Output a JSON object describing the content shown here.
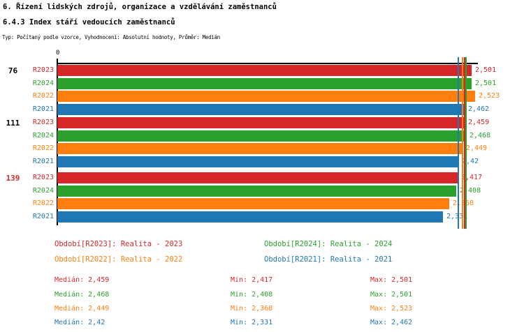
{
  "title": {
    "line1": "6. Řízení lidských zdrojů, organizace a vzdělávání zaměstnanců",
    "line2": "6.4.3 Index stáří vedoucích zaměstnanců",
    "line3": "Typ: Počítaný podle vzorce, Vyhodnocení: Absolutní hodnoty, Průměr: Medián"
  },
  "chart_data": {
    "type": "bar",
    "orientation": "horizontal",
    "x_origin_label": "0",
    "xlim": [
      0,
      2.85
    ],
    "grid": false,
    "series": [
      {
        "id": "R2023",
        "label": "R2023",
        "color": "#d62728",
        "median": 2.459,
        "median_display": "2,459"
      },
      {
        "id": "R2024",
        "label": "R2024",
        "color": "#2ca02c",
        "median": 2.468,
        "median_display": "2,468"
      },
      {
        "id": "R2022",
        "label": "R2022",
        "color": "#ff7f0e",
        "median": 2.449,
        "median_display": "2,449"
      },
      {
        "id": "R2021",
        "label": "R2021",
        "color": "#1f77b4",
        "median": 2.42,
        "median_display": "2,42"
      }
    ],
    "groups": [
      {
        "label": "76",
        "label_color": "#000000",
        "values": [
          2.501,
          2.501,
          2.523,
          2.462
        ],
        "displays": [
          "2,501",
          "2,501",
          "2,523",
          "2,462"
        ]
      },
      {
        "label": "111",
        "label_color": "#000000",
        "values": [
          2.459,
          2.468,
          2.449,
          2.42
        ],
        "displays": [
          "2,459",
          "2,468",
          "2,449",
          "2,42"
        ]
      },
      {
        "label": "139",
        "label_color": "#d62728",
        "values": [
          2.417,
          2.408,
          2.368,
          2.331
        ],
        "displays": [
          "2,417",
          "2,408",
          "2,368",
          "2,331"
        ]
      }
    ]
  },
  "legend": {
    "items": [
      {
        "series": "R2023",
        "text": "Období[R2023]: Realita - 2023"
      },
      {
        "series": "R2024",
        "text": "Období[R2024]: Realita - 2024"
      },
      {
        "series": "R2022",
        "text": "Období[R2022]: Realita - 2022"
      },
      {
        "series": "R2021",
        "text": "Období[R2021]: Realita - 2021"
      }
    ]
  },
  "stats": {
    "rows": [
      {
        "series": "R2023",
        "median": "Medián: 2,459",
        "min": "Min: 2,417",
        "max": "Max: 2,501"
      },
      {
        "series": "R2024",
        "median": "Medián: 2,468",
        "min": "Min: 2,408",
        "max": "Max: 2,501"
      },
      {
        "series": "R2022",
        "median": "Medián: 2,449",
        "min": "Min: 2,368",
        "max": "Max: 2,523"
      },
      {
        "series": "R2021",
        "median": "Medián: 2,42",
        "min": "Min: 2,331",
        "max": "Max: 2,462"
      }
    ]
  }
}
